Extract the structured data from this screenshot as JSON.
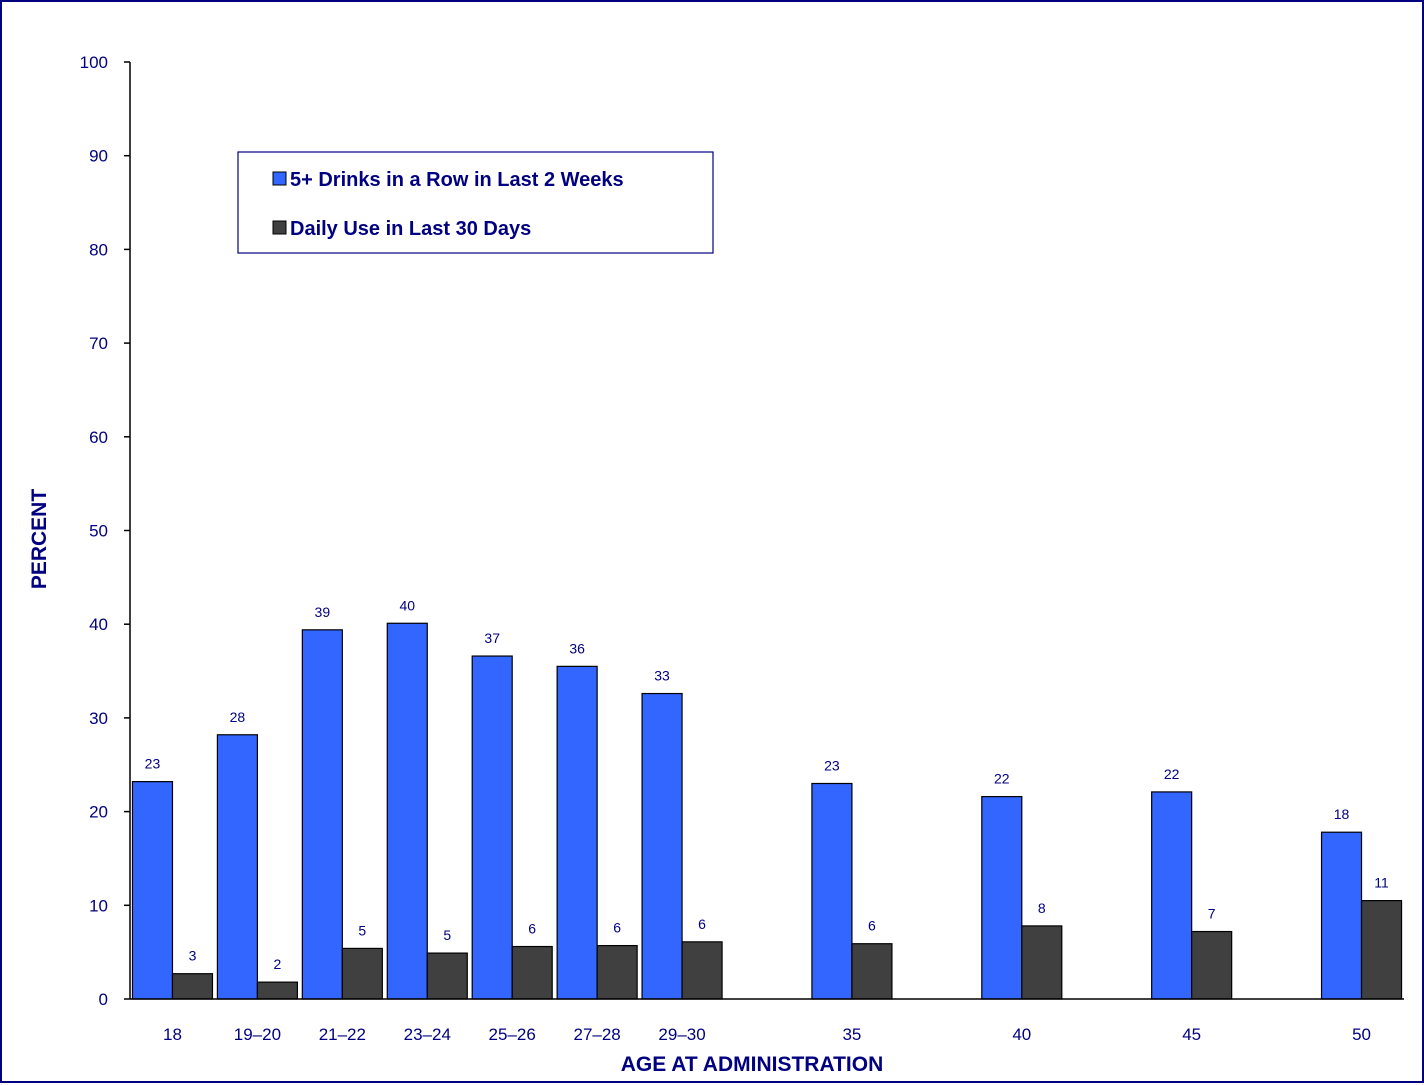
{
  "chart_data": {
    "type": "bar",
    "categories": [
      "18",
      "19–20",
      "21–22",
      "23–24",
      "25–26",
      "27–28",
      "29–30",
      "35",
      "40",
      "45",
      "50"
    ],
    "series": [
      {
        "name": "5+ Drinks in a Row in Last 2 Weeks",
        "values": [
          23.2,
          28.2,
          39.4,
          40.1,
          36.6,
          35.5,
          32.6,
          23.0,
          21.6,
          22.1,
          17.8
        ],
        "labels": [
          "23",
          "28",
          "39",
          "40",
          "37",
          "36",
          "33",
          "23",
          "22",
          "22",
          "18"
        ],
        "color": "#3366FF"
      },
      {
        "name": "Daily Use in Last 30 Days",
        "values": [
          2.7,
          1.8,
          5.4,
          4.9,
          5.6,
          5.7,
          6.1,
          5.9,
          7.8,
          7.2,
          10.5
        ],
        "labels": [
          "3",
          "2",
          "5",
          "5",
          "6",
          "6",
          "6",
          "6",
          "8",
          "7",
          "11"
        ],
        "color": "#404040"
      }
    ],
    "xlabel": "AGE AT ADMINISTRATION",
    "ylabel": "PERCENT",
    "ylim": [
      0,
      100
    ],
    "yticks": [
      0,
      10,
      20,
      30,
      40,
      50,
      60,
      70,
      80,
      90,
      100
    ],
    "grid": false,
    "legend_position": "top-left",
    "text_color": "#000080"
  }
}
